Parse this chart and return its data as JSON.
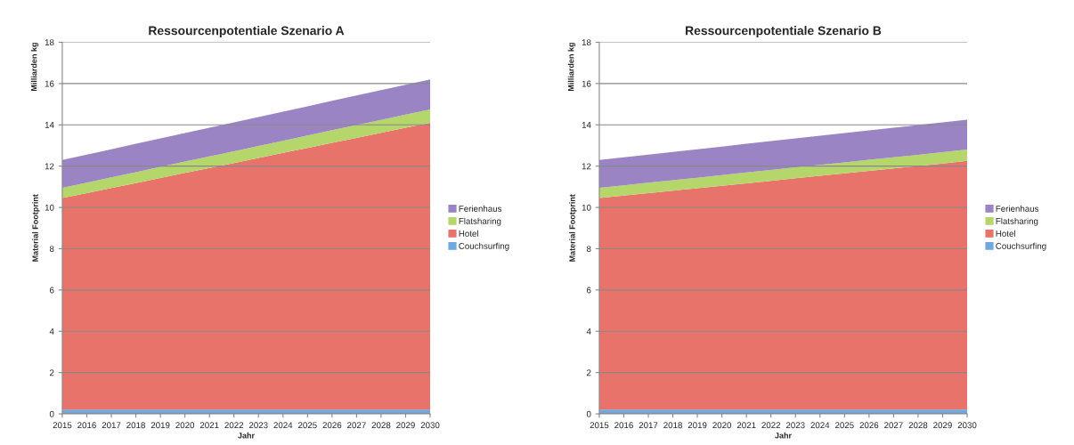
{
  "chart_data": [
    {
      "type": "area",
      "stacked": true,
      "title": "Ressourcenpotentiale Szenario A",
      "xlabel": "Jahr",
      "ylabel": "Material Footprint",
      "annotations": [
        "Milliarden kg"
      ],
      "categories": [
        "2015",
        "2016",
        "2017",
        "2018",
        "2019",
        "2020",
        "2021",
        "2022",
        "2023",
        "2024",
        "2025",
        "2026",
        "2027",
        "2028",
        "2029",
        "2030"
      ],
      "series": [
        {
          "name": "Couchsurfing",
          "color": "#6fa8dc",
          "values": [
            0.2,
            0.2,
            0.2,
            0.2,
            0.2,
            0.2,
            0.2,
            0.2,
            0.2,
            0.2,
            0.2,
            0.2,
            0.2,
            0.2,
            0.2,
            0.2
          ]
        },
        {
          "name": "Hotel",
          "color": "#e8736a",
          "values": [
            10.25,
            10.49,
            10.74,
            10.98,
            11.22,
            11.47,
            11.71,
            11.95,
            12.2,
            12.44,
            12.68,
            12.93,
            13.17,
            13.41,
            13.66,
            13.9
          ]
        },
        {
          "name": "Flatsharing",
          "color": "#b5d66a",
          "values": [
            0.5,
            0.51,
            0.52,
            0.53,
            0.54,
            0.55,
            0.56,
            0.57,
            0.58,
            0.59,
            0.6,
            0.61,
            0.62,
            0.63,
            0.64,
            0.65
          ]
        },
        {
          "name": "Ferienhaus",
          "color": "#9b84c4",
          "values": [
            1.35,
            1.36,
            1.36,
            1.37,
            1.38,
            1.38,
            1.39,
            1.4,
            1.4,
            1.41,
            1.42,
            1.42,
            1.43,
            1.44,
            1.44,
            1.45
          ]
        }
      ],
      "ylim": [
        0,
        18
      ],
      "yticks": [
        0,
        2,
        4,
        6,
        8,
        10,
        12,
        14,
        16,
        18
      ],
      "grid": "y",
      "legend": "right"
    },
    {
      "type": "area",
      "stacked": true,
      "title": "Ressourcenpotentiale Szenario B",
      "xlabel": "Jahr",
      "ylabel": "Material Footprint",
      "annotations": [
        "Milliarden kg"
      ],
      "categories": [
        "2015",
        "2016",
        "2017",
        "2018",
        "2019",
        "2020",
        "2021",
        "2022",
        "2023",
        "2024",
        "2025",
        "2026",
        "2027",
        "2028",
        "2029",
        "2030"
      ],
      "series": [
        {
          "name": "Couchsurfing",
          "color": "#6fa8dc",
          "values": [
            0.2,
            0.2,
            0.2,
            0.2,
            0.2,
            0.2,
            0.2,
            0.2,
            0.2,
            0.2,
            0.2,
            0.2,
            0.2,
            0.2,
            0.2,
            0.2
          ]
        },
        {
          "name": "Hotel",
          "color": "#e8736a",
          "values": [
            10.25,
            10.37,
            10.49,
            10.61,
            10.73,
            10.85,
            10.97,
            11.09,
            11.21,
            11.33,
            11.45,
            11.57,
            11.69,
            11.81,
            11.93,
            12.05
          ]
        },
        {
          "name": "Flatsharing",
          "color": "#b5d66a",
          "values": [
            0.5,
            0.5,
            0.51,
            0.51,
            0.51,
            0.52,
            0.52,
            0.52,
            0.53,
            0.53,
            0.53,
            0.54,
            0.54,
            0.54,
            0.55,
            0.55
          ]
        },
        {
          "name": "Ferienhaus",
          "color": "#9b84c4",
          "values": [
            1.35,
            1.36,
            1.36,
            1.37,
            1.38,
            1.38,
            1.39,
            1.4,
            1.4,
            1.41,
            1.42,
            1.42,
            1.43,
            1.44,
            1.44,
            1.45
          ]
        }
      ],
      "ylim": [
        0,
        18
      ],
      "yticks": [
        0,
        2,
        4,
        6,
        8,
        10,
        12,
        14,
        16,
        18
      ],
      "grid": "y",
      "legend": "right"
    }
  ]
}
